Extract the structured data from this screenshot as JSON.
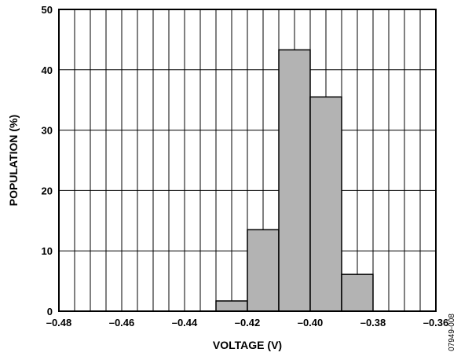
{
  "chart_data": {
    "type": "bar",
    "title": "",
    "xlabel": "VOLTAGE (V)",
    "ylabel": "POPULATION (%)",
    "xlim": [
      -0.48,
      -0.36
    ],
    "ylim": [
      0,
      50
    ],
    "x_ticks": [
      -0.48,
      -0.46,
      -0.44,
      -0.42,
      -0.4,
      -0.38,
      -0.36
    ],
    "x_tick_labels": [
      "–0.48",
      "–0.46",
      "–0.44",
      "–0.42",
      "–0.40",
      "–0.38",
      "–0.36"
    ],
    "y_ticks": [
      0,
      10,
      20,
      30,
      40,
      50
    ],
    "y_tick_labels": [
      "0",
      "10",
      "20",
      "30",
      "40",
      "50"
    ],
    "bin_width": 0.01,
    "bins": [
      {
        "start": -0.43,
        "end": -0.42,
        "value": 1.7
      },
      {
        "start": -0.42,
        "end": -0.41,
        "value": 13.5
      },
      {
        "start": -0.41,
        "end": -0.4,
        "value": 43.3
      },
      {
        "start": -0.4,
        "end": -0.39,
        "value": 35.5
      },
      {
        "start": -0.39,
        "end": -0.38,
        "value": 6.1
      }
    ],
    "grid": true,
    "bar_color": "#b3b3b3"
  },
  "figure_code": "07949-008"
}
